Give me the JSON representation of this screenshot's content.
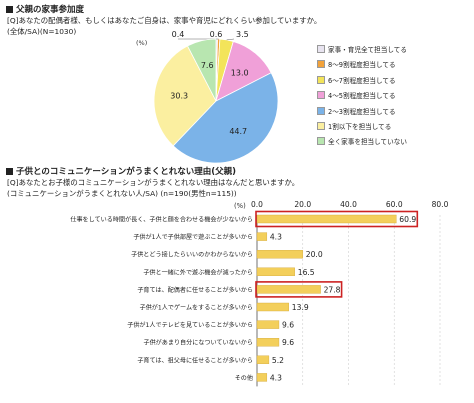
{
  "section1": {
    "title": "父親の家事参加度",
    "question": "[Q]あなたの配偶者様、もしくはあなたご自身は、家事や育児にどれくらい参加していますか。",
    "sample": "(全体/SA)(N=1030)"
  },
  "section2": {
    "title": "子供とのコミュニケーションがうまくとれない理由(父親)",
    "question": "[Q]あなたとお子様のコミュニケーションがうまくとれない理由はなんだと思いますか。",
    "sample": "(コミュニケーションがうまくとれない人/SA) (n=190(男性n=115))"
  },
  "chart_data": [
    {
      "type": "pie",
      "unit_label": "(%)",
      "categories": [
        "家事・育児全て担当してる",
        "8～9割程度担当してる",
        "6～7割程度担当してる",
        "4～5割程度担当してる",
        "2～3割程度担当してる",
        "1割以下を担当してる",
        "全く家事を担当していない"
      ],
      "values": [
        0.4,
        0.6,
        3.5,
        13.0,
        44.7,
        30.3,
        7.6
      ],
      "labels": [
        "0.4",
        "0.6",
        "3.5",
        "13.0",
        "44.7",
        "30.3",
        "7.6"
      ],
      "colors": [
        "#e8e4f0",
        "#f2a23a",
        "#f3e45a",
        "#f0a0d8",
        "#7bb3e8",
        "#fbefa0",
        "#b8e6b0"
      ],
      "legend_position": "right"
    },
    {
      "type": "bar",
      "unit_label": "(%)",
      "categories": [
        "仕事をしている時間が長く、子供と顔を合わせる機会が少ないから",
        "子供が1人で子供部屋で遊ぶことが多いから",
        "子供とどう接したらいいのかわからないから",
        "子供と一緒に外で遊ぶ機会が減ったから",
        "子育ては、配偶者に任せることが多いから",
        "子供が1人でゲームをすることが多いから",
        "子供が1人でテレビを見ていることが多いから",
        "子供があまり自分になついていないから",
        "子育ては、祖父母に任せることが多いから",
        "その他"
      ],
      "values": [
        60.9,
        4.3,
        20.0,
        16.5,
        27.8,
        13.9,
        9.6,
        9.6,
        5.2,
        4.3
      ],
      "value_labels": [
        "60.9",
        "4.3",
        "20.0",
        "16.5",
        "27.8",
        "13.9",
        "9.6",
        "9.6",
        "5.2",
        "4.3"
      ],
      "highlighted": [
        0,
        4
      ],
      "xlim": [
        0,
        80
      ],
      "xticks": [
        "0.0",
        "20.0",
        "40.0",
        "60.0",
        "80.0"
      ],
      "bar_color": "#f3cf5b",
      "highlight_color": "#cc2222"
    }
  ]
}
